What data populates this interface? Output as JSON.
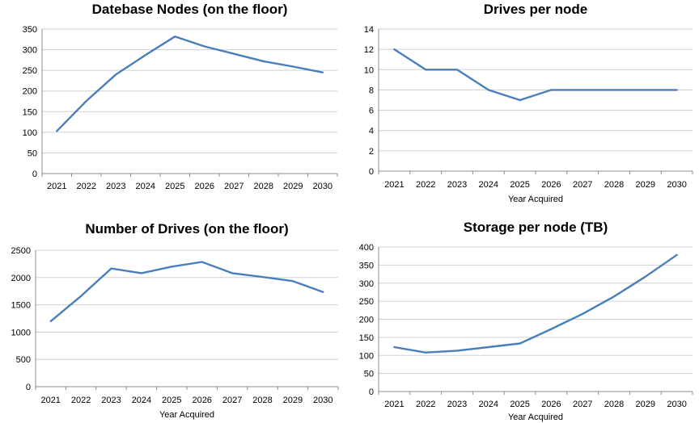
{
  "colors": {
    "series": "#4a7ebb",
    "grid": "#d0d0d0",
    "axis": "#8c8c8c"
  },
  "chart_data": [
    {
      "type": "line",
      "title": "Datebase Nodes  (on the floor)",
      "xlabel": "",
      "ylabel": "",
      "categories": [
        "2021",
        "2022",
        "2023",
        "2024",
        "2025",
        "2026",
        "2027",
        "2028",
        "2029",
        "2030"
      ],
      "series": [
        {
          "values": [
            103,
            176,
            240,
            287,
            332,
            308,
            290,
            272,
            259,
            245
          ]
        }
      ],
      "ylim": [
        0,
        350
      ],
      "yticks": [
        0,
        50,
        100,
        150,
        200,
        250,
        300,
        350
      ],
      "grid": true,
      "legend": "none"
    },
    {
      "type": "line",
      "title": "Drives per node",
      "xlabel": "Year Acquired",
      "ylabel": "",
      "categories": [
        "2021",
        "2022",
        "2023",
        "2024",
        "2025",
        "2026",
        "2027",
        "2028",
        "2029",
        "2030"
      ],
      "series": [
        {
          "values": [
            12,
            10,
            10,
            8,
            7,
            8,
            8,
            8,
            8,
            8
          ]
        }
      ],
      "ylim": [
        0,
        14
      ],
      "yticks": [
        0,
        2,
        4,
        6,
        8,
        10,
        12,
        14
      ],
      "grid": true,
      "legend": "none"
    },
    {
      "type": "line",
      "title": "Number of Drives  (on the floor)",
      "xlabel": "Year Acquired",
      "ylabel": "",
      "categories": [
        "2021",
        "2022",
        "2023",
        "2024",
        "2025",
        "2026",
        "2027",
        "2028",
        "2029",
        "2030"
      ],
      "series": [
        {
          "values": [
            1200,
            1660,
            2165,
            2080,
            2200,
            2285,
            2080,
            2010,
            1935,
            1735
          ]
        }
      ],
      "ylim": [
        0,
        2500
      ],
      "yticks": [
        0,
        500,
        1000,
        1500,
        2000,
        2500
      ],
      "grid": true,
      "legend": "none"
    },
    {
      "type": "line",
      "title": "Storage per node (TB)",
      "xlabel": "Year Acquired",
      "ylabel": "",
      "categories": [
        "2021",
        "2022",
        "2023",
        "2024",
        "2025",
        "2026",
        "2027",
        "2028",
        "2029",
        "2030"
      ],
      "series": [
        {
          "values": [
            123,
            108,
            113,
            123,
            133,
            173,
            215,
            263,
            318,
            378
          ]
        }
      ],
      "ylim": [
        0,
        400
      ],
      "yticks": [
        0,
        50,
        100,
        150,
        200,
        250,
        300,
        350,
        400
      ],
      "grid": true,
      "legend": "none"
    }
  ]
}
